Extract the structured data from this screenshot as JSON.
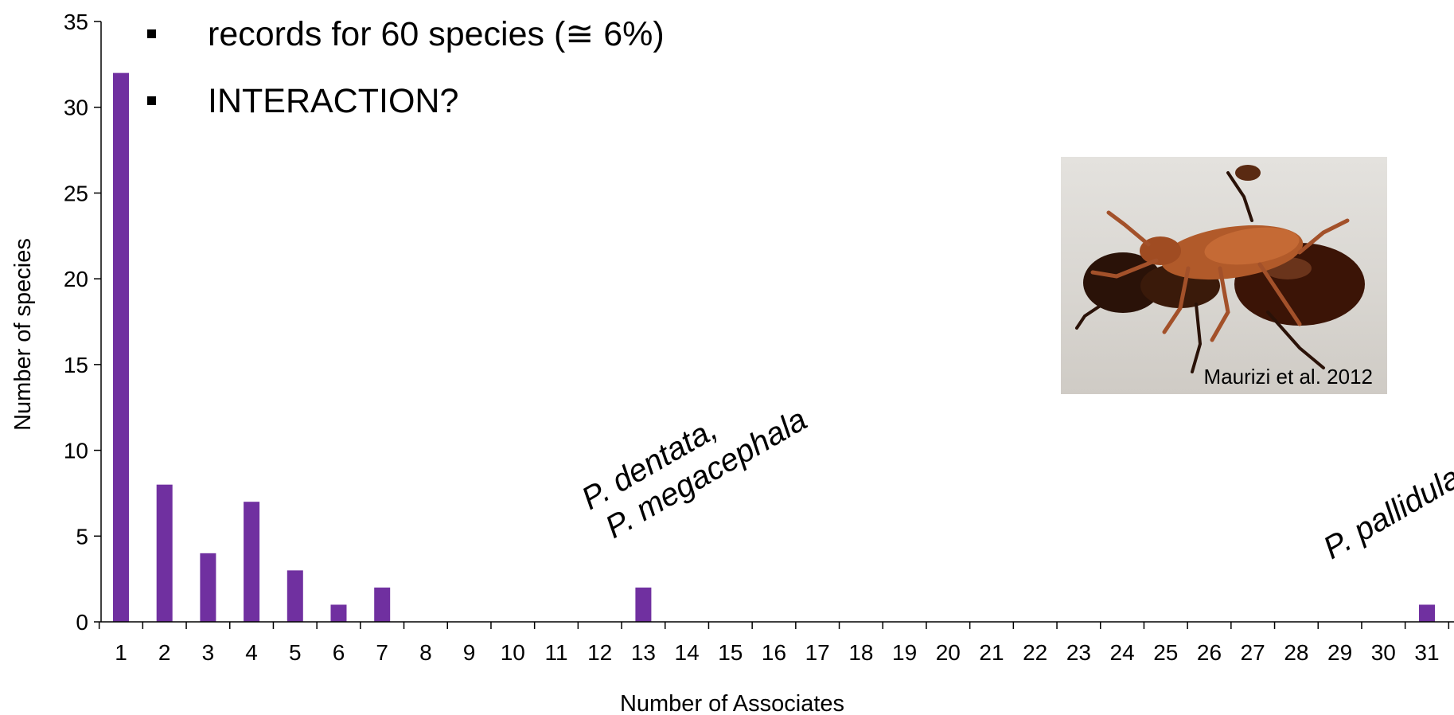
{
  "chart_data": {
    "type": "bar",
    "categories": [
      "1",
      "2",
      "3",
      "4",
      "5",
      "6",
      "7",
      "8",
      "9",
      "10",
      "11",
      "12",
      "13",
      "14",
      "15",
      "16",
      "17",
      "18",
      "19",
      "20",
      "21",
      "22",
      "23",
      "24",
      "25",
      "26",
      "27",
      "28",
      "29",
      "30",
      "31"
    ],
    "values": [
      32,
      8,
      4,
      7,
      3,
      1,
      2,
      0,
      0,
      0,
      0,
      0,
      2,
      0,
      0,
      0,
      0,
      0,
      0,
      0,
      0,
      0,
      0,
      0,
      0,
      0,
      0,
      0,
      0,
      0,
      1
    ],
    "xlabel": "Number of Associates",
    "ylabel": "Number of species",
    "ylim": [
      0,
      35
    ],
    "yticks": [
      0,
      5,
      10,
      15,
      20,
      25,
      30,
      35
    ],
    "bar_color": "#7030a0",
    "grid": false,
    "annotations": [
      {
        "category": "13",
        "lines": [
          "P. dentata,",
          "P. megacephala"
        ]
      },
      {
        "category": "31",
        "lines": [
          "P. pallidula"
        ]
      }
    ]
  },
  "bullets": [
    {
      "text": "records for 60 species (≅ 6%)"
    },
    {
      "text": "INTERACTION?"
    }
  ],
  "photo": {
    "subject": "ant-beetle-photo",
    "caption": "Maurizi et al. 2012"
  }
}
